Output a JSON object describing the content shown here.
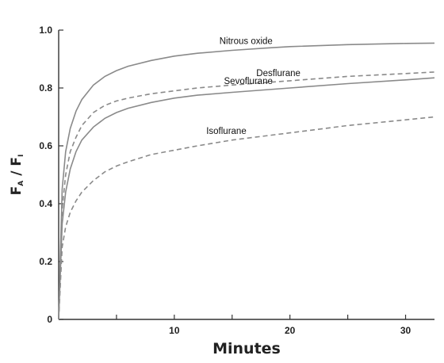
{
  "chart_data": {
    "type": "line",
    "title": "",
    "xlabel": "Minutes",
    "ylabel_main": "F",
    "ylabel_main_sub": "A",
    "ylabel_sep": " / ",
    "ylabel_den": "F",
    "ylabel_den_sub": "I",
    "xlim": [
      0,
      32.5
    ],
    "ylim": [
      0,
      1.0
    ],
    "x_ticks": [
      5,
      10,
      15,
      20,
      25,
      30
    ],
    "x_tick_labels": [
      "",
      "10",
      "",
      "20",
      "",
      "30"
    ],
    "y_ticks": [
      0,
      0.2,
      0.4,
      0.6,
      0.8,
      1.0
    ],
    "y_tick_labels": [
      "0",
      "0.2",
      "0.4",
      "0.6",
      "0.8",
      "1.0"
    ],
    "grid": false,
    "line_color": "#8a8a8a",
    "series": [
      {
        "name": "Nitrous oxide",
        "style": "solid",
        "points": [
          [
            0,
            0
          ],
          [
            0.3,
            0.45
          ],
          [
            0.6,
            0.58
          ],
          [
            1,
            0.66
          ],
          [
            1.5,
            0.72
          ],
          [
            2,
            0.76
          ],
          [
            3,
            0.81
          ],
          [
            4,
            0.84
          ],
          [
            5,
            0.86
          ],
          [
            6,
            0.875
          ],
          [
            8,
            0.895
          ],
          [
            10,
            0.91
          ],
          [
            12,
            0.92
          ],
          [
            15,
            0.93
          ],
          [
            18,
            0.938
          ],
          [
            20,
            0.943
          ],
          [
            25,
            0.95
          ],
          [
            30,
            0.954
          ],
          [
            32.5,
            0.955
          ]
        ]
      },
      {
        "name": "Desflurane",
        "style": "dashed",
        "points": [
          [
            0,
            0
          ],
          [
            0.3,
            0.38
          ],
          [
            0.6,
            0.5
          ],
          [
            1,
            0.58
          ],
          [
            1.5,
            0.63
          ],
          [
            2,
            0.67
          ],
          [
            3,
            0.715
          ],
          [
            4,
            0.74
          ],
          [
            5,
            0.755
          ],
          [
            6,
            0.765
          ],
          [
            8,
            0.78
          ],
          [
            10,
            0.79
          ],
          [
            12,
            0.8
          ],
          [
            15,
            0.81
          ],
          [
            20,
            0.825
          ],
          [
            25,
            0.84
          ],
          [
            30,
            0.85
          ],
          [
            32.5,
            0.855
          ]
        ]
      },
      {
        "name": "Sevoflurane",
        "style": "solid",
        "points": [
          [
            0,
            0
          ],
          [
            0.3,
            0.33
          ],
          [
            0.6,
            0.44
          ],
          [
            1,
            0.52
          ],
          [
            1.5,
            0.58
          ],
          [
            2,
            0.62
          ],
          [
            3,
            0.665
          ],
          [
            4,
            0.695
          ],
          [
            5,
            0.715
          ],
          [
            6,
            0.73
          ],
          [
            8,
            0.75
          ],
          [
            10,
            0.765
          ],
          [
            12,
            0.775
          ],
          [
            15,
            0.785
          ],
          [
            20,
            0.8
          ],
          [
            25,
            0.815
          ],
          [
            30,
            0.828
          ],
          [
            32.5,
            0.835
          ]
        ]
      },
      {
        "name": "Isoflurane",
        "style": "dashed",
        "points": [
          [
            0,
            0
          ],
          [
            0.3,
            0.25
          ],
          [
            0.6,
            0.32
          ],
          [
            1,
            0.37
          ],
          [
            1.5,
            0.41
          ],
          [
            2,
            0.44
          ],
          [
            3,
            0.48
          ],
          [
            4,
            0.51
          ],
          [
            5,
            0.53
          ],
          [
            6,
            0.545
          ],
          [
            8,
            0.57
          ],
          [
            10,
            0.585
          ],
          [
            12,
            0.6
          ],
          [
            15,
            0.62
          ],
          [
            20,
            0.645
          ],
          [
            25,
            0.67
          ],
          [
            30,
            0.69
          ],
          [
            32.5,
            0.7
          ]
        ]
      }
    ]
  }
}
